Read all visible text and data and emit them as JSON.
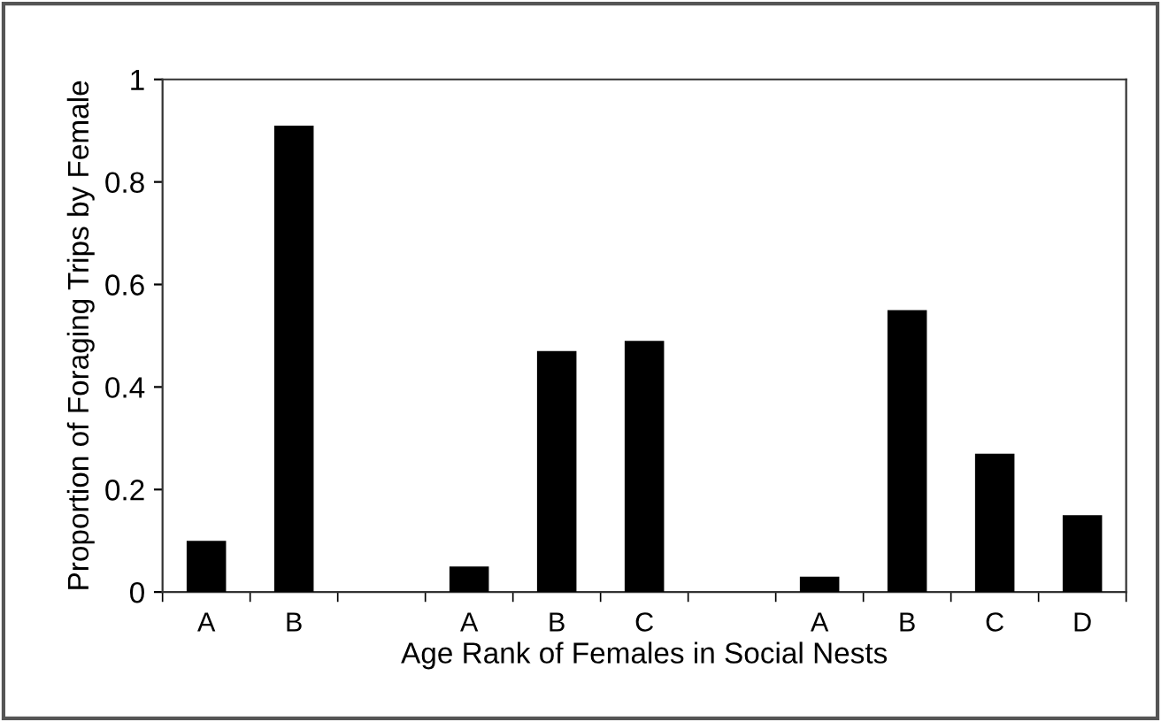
{
  "chart_data": {
    "type": "bar",
    "xlabel": "Age Rank of Females in Social Nests",
    "ylabel": "Proportion of Foraging Trips by Female",
    "categories": [
      "A",
      "B",
      null,
      "A",
      "B",
      "C",
      null,
      "A",
      "B",
      "C",
      "D"
    ],
    "values": [
      0.1,
      0.91,
      null,
      0.05,
      0.47,
      0.49,
      null,
      0.03,
      0.55,
      0.27,
      0.15
    ],
    "color": "#000000",
    "ylim": [
      0,
      1
    ],
    "yticks": [
      0,
      0.2,
      0.4,
      0.6,
      0.8,
      1
    ],
    "grid": false,
    "legend": false
  }
}
